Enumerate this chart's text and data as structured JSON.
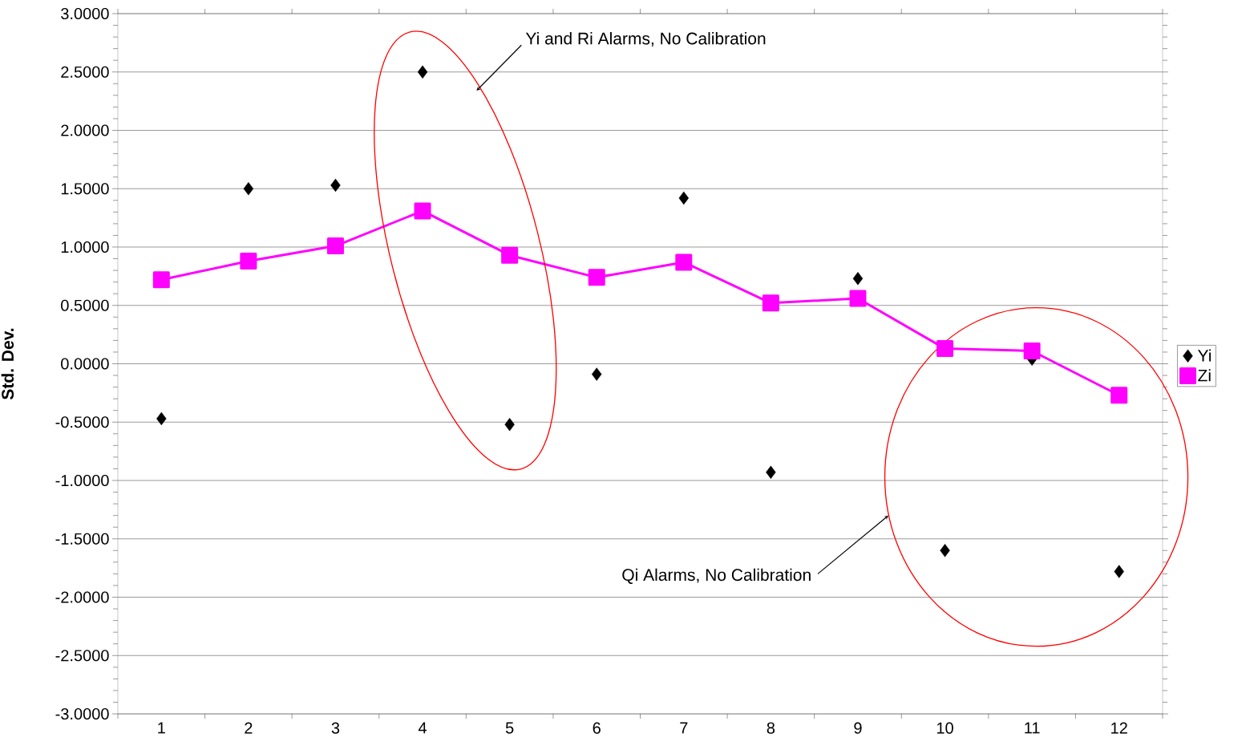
{
  "chart_data": {
    "type": "line",
    "ylabel": "Std. Dev.",
    "categories": [
      "1",
      "2",
      "3",
      "4",
      "5",
      "6",
      "7",
      "8",
      "9",
      "10",
      "11",
      "12"
    ],
    "series": [
      {
        "name": "Yi",
        "type": "scatter",
        "marker": "diamond",
        "color": "#000000",
        "values": [
          -0.47,
          1.5,
          1.53,
          2.5,
          -0.52,
          -0.09,
          1.42,
          -0.93,
          0.73,
          -1.6,
          0.04,
          -1.78
        ]
      },
      {
        "name": "Zi",
        "marker": "square",
        "color": "#ff00ff",
        "values": [
          0.72,
          0.88,
          1.01,
          1.31,
          0.93,
          0.74,
          0.87,
          0.52,
          0.56,
          0.13,
          0.11,
          -0.27
        ]
      }
    ],
    "ylim": [
      -3,
      3
    ],
    "yticks": [
      {
        "value": -3,
        "label": "-3.0000"
      },
      {
        "value": -2.5,
        "label": "-2.5000"
      },
      {
        "value": -2,
        "label": "-2.0000"
      },
      {
        "value": -1.5,
        "label": "-1.5000"
      },
      {
        "value": -1,
        "label": "-1.0000"
      },
      {
        "value": -0.5,
        "label": "-0.5000"
      },
      {
        "value": 0,
        "label": "0.0000"
      },
      {
        "value": 0.5,
        "label": "0.5000"
      },
      {
        "value": 1,
        "label": "1.0000"
      },
      {
        "value": 1.5,
        "label": "1.5000"
      },
      {
        "value": 2,
        "label": "2.0000"
      },
      {
        "value": 2.5,
        "label": "2.5000"
      },
      {
        "value": 3,
        "label": "3.0000"
      }
    ],
    "grid": "y",
    "legend": "right",
    "annotations": [
      "Yi and Ri Alarms, No Calibration",
      "Qi Alarms, No Calibration"
    ]
  }
}
